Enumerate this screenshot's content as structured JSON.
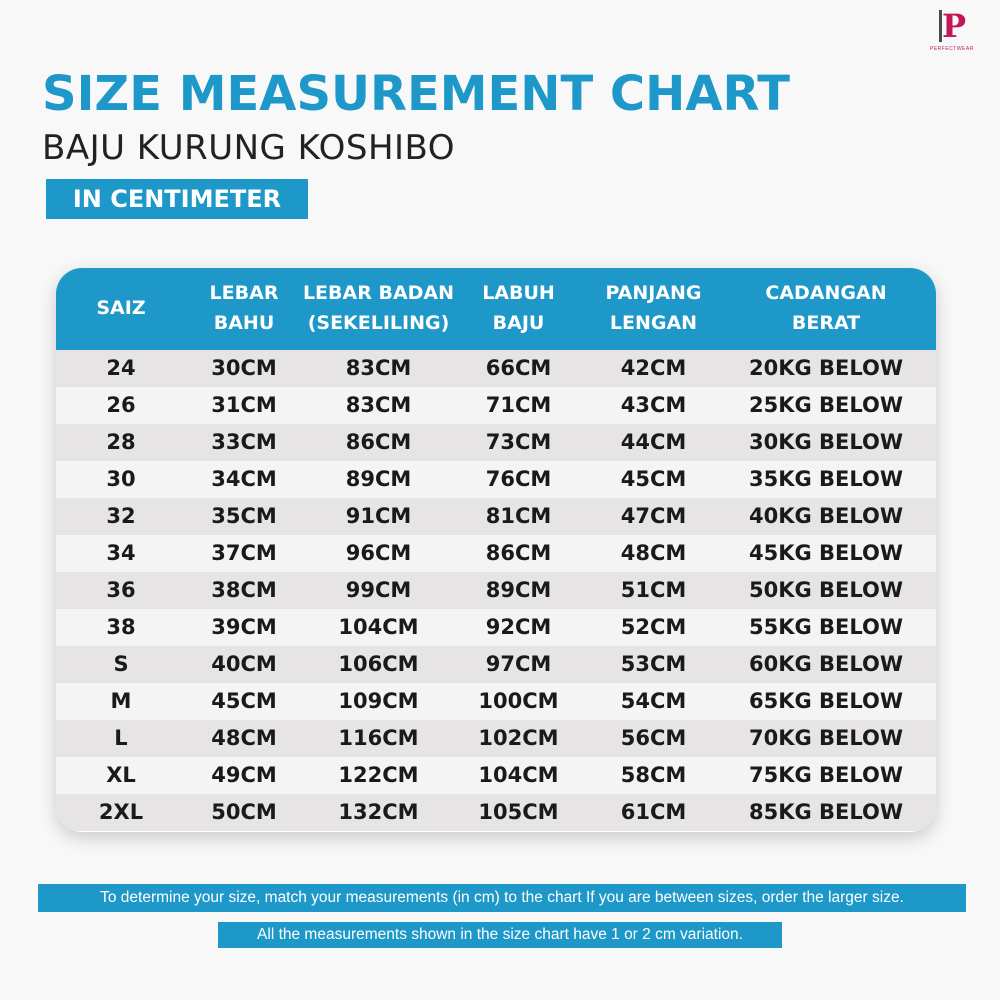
{
  "logo": {
    "mark": "P",
    "text": "PERFECTWEAR"
  },
  "header": {
    "title": "SIZE MEASUREMENT CHART",
    "subtitle": "BAJU KURUNG KOSHIBO",
    "unit_tag": "IN CENTIMETER"
  },
  "table": {
    "columns": [
      {
        "line1": "SAIZ",
        "line2": ""
      },
      {
        "line1": "LEBAR",
        "line2": "BAHU"
      },
      {
        "line1": "LEBAR BADAN",
        "line2": "(SEKELILING)"
      },
      {
        "line1": "LABUH",
        "line2": "BAJU"
      },
      {
        "line1": "PANJANG",
        "line2": "LENGAN"
      },
      {
        "line1": "CADANGAN",
        "line2": "BERAT"
      }
    ],
    "rows": [
      [
        "24",
        "30CM",
        "83CM",
        "66CM",
        "42CM",
        "20KG BELOW"
      ],
      [
        "26",
        "31CM",
        "83CM",
        "71CM",
        "43CM",
        "25KG BELOW"
      ],
      [
        "28",
        "33CM",
        "86CM",
        "73CM",
        "44CM",
        "30KG BELOW"
      ],
      [
        "30",
        "34CM",
        "89CM",
        "76CM",
        "45CM",
        "35KG BELOW"
      ],
      [
        "32",
        "35CM",
        "91CM",
        "81CM",
        "47CM",
        "40KG BELOW"
      ],
      [
        "34",
        "37CM",
        "96CM",
        "86CM",
        "48CM",
        "45KG BELOW"
      ],
      [
        "36",
        "38CM",
        "99CM",
        "89CM",
        "51CM",
        "50KG BELOW"
      ],
      [
        "38",
        "39CM",
        "104CM",
        "92CM",
        "52CM",
        "55KG BELOW"
      ],
      [
        "S",
        "40CM",
        "106CM",
        "97CM",
        "53CM",
        "60KG BELOW"
      ],
      [
        "M",
        "45CM",
        "109CM",
        "100CM",
        "54CM",
        "65KG BELOW"
      ],
      [
        "L",
        "48CM",
        "116CM",
        "102CM",
        "56CM",
        "70KG BELOW"
      ],
      [
        "XL",
        "49CM",
        "122CM",
        "104CM",
        "58CM",
        "75KG BELOW"
      ],
      [
        "2XL",
        "50CM",
        "132CM",
        "105CM",
        "61CM",
        "85KG BELOW"
      ]
    ]
  },
  "notes": {
    "fit_advice": "To determine your size, match your measurements (in cm) to the chart If you are between sizes, order the larger size.",
    "variation": "All the measurements shown in the size chart have 1 or 2 cm variation."
  },
  "colors": {
    "accent": "#1e97c9",
    "row_odd": "#e7e4e6",
    "row_even": "#f5f4f5",
    "logo": "#c2185b"
  }
}
